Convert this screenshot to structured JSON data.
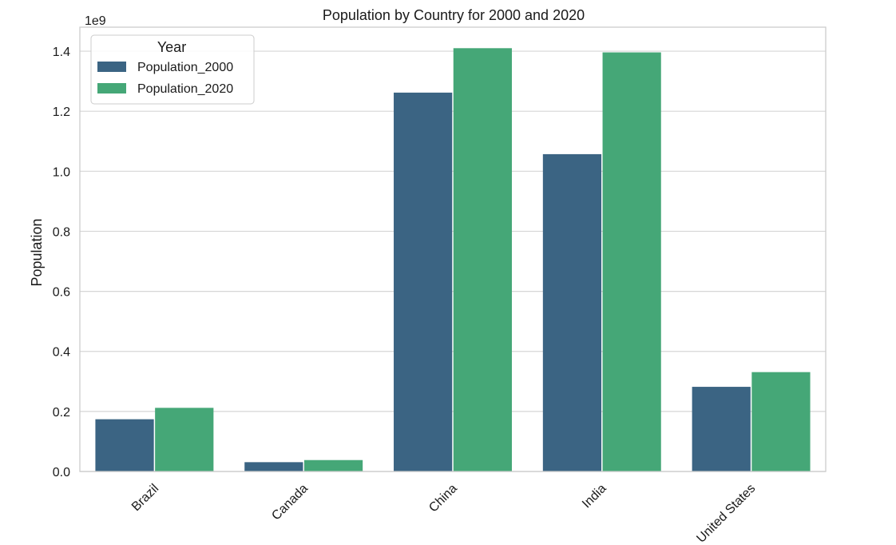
{
  "chart_data": {
    "type": "bar",
    "title": "Population by Country for 2000 and 2020",
    "xlabel": "",
    "ylabel": "Population",
    "y_offset_text": "1e9",
    "categories": [
      "Brazil",
      "Canada",
      "China",
      "India",
      "United States"
    ],
    "series": [
      {
        "name": "Population_2000",
        "color": "#3b6483",
        "values": [
          174000000,
          31000000,
          1262000000,
          1057000000,
          282000000
        ]
      },
      {
        "name": "Population_2020",
        "color": "#45a777",
        "values": [
          212000000,
          38000000,
          1410000000,
          1396000000,
          331000000
        ]
      }
    ],
    "ylim": [
      0,
      1480000000
    ],
    "yticks": [
      0,
      200000000,
      400000000,
      600000000,
      800000000,
      1000000000,
      1200000000,
      1400000000
    ],
    "ytick_labels": [
      "0.0",
      "0.2",
      "0.4",
      "0.6",
      "0.8",
      "1.0",
      "1.2",
      "1.4"
    ],
    "grid": true,
    "legend": {
      "title": "Year",
      "position": "top-left"
    }
  }
}
